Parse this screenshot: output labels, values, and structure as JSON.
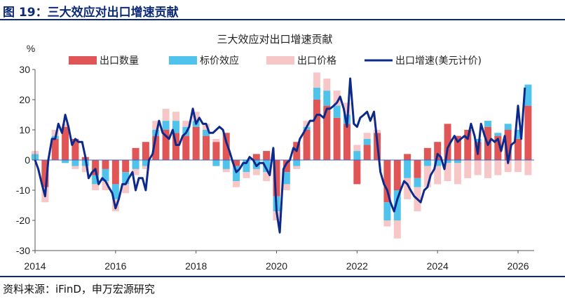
{
  "figure_title": "图 19：三大效应对出口增速贡献",
  "source": "资料来源：iFinD，申万宏源研究",
  "chart_data": {
    "type": "bar",
    "title": "三大效应对出口增速贡献",
    "ylabel": "%",
    "ylim": [
      -30,
      30
    ],
    "yticks": [
      30,
      20,
      10,
      0,
      -10,
      -20,
      -30
    ],
    "xticks": [
      "2014",
      "2016",
      "2018",
      "2020",
      "2022",
      "2024",
      "2026"
    ],
    "xlim": [
      2014.0,
      2026.4
    ],
    "stacked": true,
    "grid": false,
    "legend_position": "top",
    "series": [
      {
        "name": "出口数量",
        "type": "bar",
        "color": "#e05656",
        "values": [
          [
            2014.0,
            0
          ],
          [
            2014.25,
            -9
          ],
          [
            2014.5,
            7
          ],
          [
            2014.75,
            11
          ],
          [
            2015.0,
            7
          ],
          [
            2015.25,
            1
          ],
          [
            2015.5,
            -5
          ],
          [
            2015.75,
            -3
          ],
          [
            2016.0,
            -8
          ],
          [
            2016.25,
            -4
          ],
          [
            2016.5,
            4
          ],
          [
            2016.75,
            6
          ],
          [
            2017.0,
            8
          ],
          [
            2017.25,
            10
          ],
          [
            2017.5,
            9
          ],
          [
            2017.75,
            8
          ],
          [
            2018.0,
            11
          ],
          [
            2018.25,
            8
          ],
          [
            2018.5,
            6
          ],
          [
            2018.75,
            9
          ],
          [
            2019.0,
            -2
          ],
          [
            2019.25,
            0
          ],
          [
            2019.5,
            2
          ],
          [
            2019.75,
            3
          ],
          [
            2020.0,
            -12
          ],
          [
            2020.25,
            -4
          ],
          [
            2020.5,
            6
          ],
          [
            2020.75,
            10
          ],
          [
            2021.0,
            20
          ],
          [
            2021.25,
            18
          ],
          [
            2021.5,
            14
          ],
          [
            2021.75,
            12
          ],
          [
            2022.0,
            -8
          ],
          [
            2022.25,
            5
          ],
          [
            2022.5,
            9
          ],
          [
            2022.75,
            -14
          ],
          [
            2023.0,
            -10
          ],
          [
            2023.25,
            2
          ],
          [
            2023.5,
            -6
          ],
          [
            2023.75,
            4
          ],
          [
            2024.0,
            6
          ],
          [
            2024.25,
            12
          ],
          [
            2024.5,
            8
          ],
          [
            2024.75,
            10
          ],
          [
            2025.0,
            6
          ],
          [
            2025.25,
            11
          ],
          [
            2025.5,
            8
          ],
          [
            2025.75,
            10
          ],
          [
            2026.0,
            7
          ],
          [
            2026.25,
            18
          ]
        ]
      },
      {
        "name": "标价效应",
        "type": "bar",
        "color": "#4fc3ec",
        "values": [
          [
            2014.0,
            2
          ],
          [
            2014.25,
            0
          ],
          [
            2014.5,
            1
          ],
          [
            2014.75,
            -1
          ],
          [
            2015.0,
            -2
          ],
          [
            2015.25,
            -2
          ],
          [
            2015.5,
            -3
          ],
          [
            2015.75,
            -4
          ],
          [
            2016.0,
            -5
          ],
          [
            2016.25,
            -4
          ],
          [
            2016.5,
            -3
          ],
          [
            2016.75,
            -2
          ],
          [
            2017.0,
            2
          ],
          [
            2017.25,
            3
          ],
          [
            2017.5,
            4
          ],
          [
            2017.75,
            3
          ],
          [
            2018.0,
            2
          ],
          [
            2018.25,
            2
          ],
          [
            2018.5,
            -2
          ],
          [
            2018.75,
            -3
          ],
          [
            2019.0,
            -5
          ],
          [
            2019.25,
            -4
          ],
          [
            2019.5,
            -3
          ],
          [
            2019.75,
            -4
          ],
          [
            2020.0,
            -5
          ],
          [
            2020.25,
            -4
          ],
          [
            2020.5,
            -2
          ],
          [
            2020.75,
            1
          ],
          [
            2021.0,
            4
          ],
          [
            2021.25,
            5
          ],
          [
            2021.5,
            4
          ],
          [
            2021.75,
            3
          ],
          [
            2022.0,
            3
          ],
          [
            2022.25,
            2
          ],
          [
            2022.5,
            0
          ],
          [
            2022.75,
            -6
          ],
          [
            2023.0,
            -10
          ],
          [
            2023.25,
            -6
          ],
          [
            2023.5,
            -3
          ],
          [
            2023.75,
            -2
          ],
          [
            2024.0,
            -2
          ],
          [
            2024.25,
            -1
          ],
          [
            2024.5,
            -1
          ],
          [
            2024.75,
            0
          ],
          [
            2025.0,
            1
          ],
          [
            2025.25,
            2
          ],
          [
            2025.5,
            1
          ],
          [
            2025.75,
            2
          ],
          [
            2026.0,
            3
          ],
          [
            2026.25,
            7
          ]
        ]
      },
      {
        "name": "出口价格",
        "type": "bar",
        "color": "#f7c6c6",
        "values": [
          [
            2014.0,
            1
          ],
          [
            2014.25,
            -5
          ],
          [
            2014.5,
            2
          ],
          [
            2014.75,
            1
          ],
          [
            2015.0,
            -1
          ],
          [
            2015.25,
            -2
          ],
          [
            2015.5,
            -2
          ],
          [
            2015.75,
            -3
          ],
          [
            2016.0,
            -4
          ],
          [
            2016.25,
            -3
          ],
          [
            2016.5,
            -2
          ],
          [
            2016.75,
            -1
          ],
          [
            2017.0,
            3
          ],
          [
            2017.25,
            4
          ],
          [
            2017.5,
            3
          ],
          [
            2017.75,
            2
          ],
          [
            2018.0,
            3
          ],
          [
            2018.25,
            2
          ],
          [
            2018.5,
            1
          ],
          [
            2018.75,
            -1
          ],
          [
            2019.0,
            -2
          ],
          [
            2019.25,
            -2
          ],
          [
            2019.5,
            -2
          ],
          [
            2019.75,
            -3
          ],
          [
            2020.0,
            -3
          ],
          [
            2020.25,
            -2
          ],
          [
            2020.5,
            -1
          ],
          [
            2020.75,
            2
          ],
          [
            2021.0,
            5
          ],
          [
            2021.25,
            4
          ],
          [
            2021.5,
            5
          ],
          [
            2021.75,
            4
          ],
          [
            2022.0,
            2
          ],
          [
            2022.25,
            2
          ],
          [
            2022.5,
            1
          ],
          [
            2022.75,
            -2
          ],
          [
            2023.0,
            -6
          ],
          [
            2023.25,
            -7
          ],
          [
            2023.5,
            -8
          ],
          [
            2023.75,
            -7
          ],
          [
            2024.0,
            -6
          ],
          [
            2024.25,
            -6
          ],
          [
            2024.5,
            -7
          ],
          [
            2024.75,
            -6
          ],
          [
            2025.0,
            -5
          ],
          [
            2025.25,
            -6
          ],
          [
            2025.5,
            -5
          ],
          [
            2025.75,
            -4
          ],
          [
            2026.0,
            -4
          ],
          [
            2026.25,
            -5
          ]
        ]
      },
      {
        "name": "出口增速(美元计价)",
        "type": "line",
        "color": "#0d2a8a",
        "values": [
          [
            2014.0,
            0
          ],
          [
            2014.08,
            -3
          ],
          [
            2014.17,
            -8
          ],
          [
            2014.25,
            -12
          ],
          [
            2014.33,
            0
          ],
          [
            2014.42,
            7
          ],
          [
            2014.5,
            7
          ],
          [
            2014.58,
            12
          ],
          [
            2014.67,
            9
          ],
          [
            2014.75,
            15
          ],
          [
            2014.83,
            11
          ],
          [
            2014.92,
            5
          ],
          [
            2015.0,
            7
          ],
          [
            2015.08,
            6
          ],
          [
            2015.17,
            6
          ],
          [
            2015.25,
            1
          ],
          [
            2015.33,
            -6
          ],
          [
            2015.42,
            -4
          ],
          [
            2015.5,
            -3
          ],
          [
            2015.58,
            -8
          ],
          [
            2015.67,
            -6
          ],
          [
            2015.75,
            -7
          ],
          [
            2015.83,
            -9
          ],
          [
            2015.92,
            -11
          ],
          [
            2016.0,
            -16
          ],
          [
            2016.08,
            -13
          ],
          [
            2016.17,
            -8
          ],
          [
            2016.25,
            -8
          ],
          [
            2016.33,
            -6
          ],
          [
            2016.42,
            -4
          ],
          [
            2016.5,
            -10
          ],
          [
            2016.58,
            -6
          ],
          [
            2016.67,
            -6
          ],
          [
            2016.75,
            -10
          ],
          [
            2016.83,
            0
          ],
          [
            2016.92,
            2
          ],
          [
            2017.0,
            8
          ],
          [
            2017.08,
            13
          ],
          [
            2017.17,
            9
          ],
          [
            2017.25,
            8
          ],
          [
            2017.33,
            7
          ],
          [
            2017.42,
            10
          ],
          [
            2017.5,
            5
          ],
          [
            2017.58,
            5
          ],
          [
            2017.67,
            8
          ],
          [
            2017.75,
            9
          ],
          [
            2017.83,
            11
          ],
          [
            2017.92,
            17
          ],
          [
            2018.0,
            12
          ],
          [
            2018.08,
            14
          ],
          [
            2018.17,
            12
          ],
          [
            2018.25,
            12
          ],
          [
            2018.33,
            9
          ],
          [
            2018.42,
            9
          ],
          [
            2018.5,
            10
          ],
          [
            2018.58,
            11
          ],
          [
            2018.67,
            10
          ],
          [
            2018.75,
            6
          ],
          [
            2018.83,
            3
          ],
          [
            2018.92,
            -1
          ],
          [
            2019.0,
            -4
          ],
          [
            2019.08,
            -3
          ],
          [
            2019.17,
            -1
          ],
          [
            2019.25,
            -1
          ],
          [
            2019.33,
            1
          ],
          [
            2019.42,
            0
          ],
          [
            2019.5,
            -2
          ],
          [
            2019.58,
            -1
          ],
          [
            2019.67,
            -1
          ],
          [
            2019.75,
            -3
          ],
          [
            2019.83,
            -5
          ],
          [
            2019.92,
            4
          ],
          [
            2020.0,
            -17
          ],
          [
            2020.08,
            -24
          ],
          [
            2020.17,
            -3
          ],
          [
            2020.25,
            -1
          ],
          [
            2020.33,
            0
          ],
          [
            2020.42,
            4
          ],
          [
            2020.5,
            3
          ],
          [
            2020.58,
            7
          ],
          [
            2020.67,
            9
          ],
          [
            2020.75,
            11
          ],
          [
            2020.83,
            13
          ],
          [
            2020.92,
            13
          ],
          [
            2021.0,
            15
          ],
          [
            2021.08,
            15
          ],
          [
            2021.17,
            14
          ],
          [
            2021.25,
            17
          ],
          [
            2021.33,
            17
          ],
          [
            2021.42,
            18
          ],
          [
            2021.5,
            19
          ],
          [
            2021.58,
            21
          ],
          [
            2021.67,
            17
          ],
          [
            2021.75,
            11
          ],
          [
            2021.83,
            27
          ],
          [
            2021.92,
            12
          ],
          [
            2022.0,
            11
          ],
          [
            2022.08,
            14
          ],
          [
            2022.17,
            15
          ],
          [
            2022.25,
            16
          ],
          [
            2022.33,
            13
          ],
          [
            2022.42,
            16
          ],
          [
            2022.5,
            6
          ],
          [
            2022.58,
            -4
          ],
          [
            2022.67,
            -8
          ],
          [
            2022.75,
            -10
          ],
          [
            2022.83,
            -14
          ],
          [
            2022.92,
            -17
          ],
          [
            2023.0,
            -13
          ],
          [
            2023.08,
            -10
          ],
          [
            2023.17,
            -7
          ],
          [
            2023.25,
            -8
          ],
          [
            2023.33,
            -10
          ],
          [
            2023.42,
            -12
          ],
          [
            2023.5,
            -13
          ],
          [
            2023.58,
            -14
          ],
          [
            2023.67,
            -10
          ],
          [
            2023.75,
            -9
          ],
          [
            2023.83,
            -5
          ],
          [
            2023.92,
            -3
          ],
          [
            2024.0,
            2
          ],
          [
            2024.08,
            1
          ],
          [
            2024.17,
            -3
          ],
          [
            2024.25,
            4
          ],
          [
            2024.33,
            6
          ],
          [
            2024.42,
            8
          ],
          [
            2024.5,
            6
          ],
          [
            2024.58,
            7
          ],
          [
            2024.67,
            8
          ],
          [
            2024.75,
            7
          ],
          [
            2024.83,
            12
          ],
          [
            2024.92,
            8
          ],
          [
            2025.0,
            2
          ],
          [
            2025.08,
            12
          ],
          [
            2025.17,
            8
          ],
          [
            2025.25,
            5
          ],
          [
            2025.33,
            7
          ],
          [
            2025.42,
            6
          ],
          [
            2025.5,
            7
          ],
          [
            2025.58,
            3
          ],
          [
            2025.67,
            8
          ],
          [
            2025.75,
            -1
          ],
          [
            2025.83,
            5
          ],
          [
            2025.92,
            6
          ],
          [
            2026.0,
            18
          ],
          [
            2026.08,
            7
          ],
          [
            2026.17,
            24
          ]
        ]
      }
    ]
  }
}
